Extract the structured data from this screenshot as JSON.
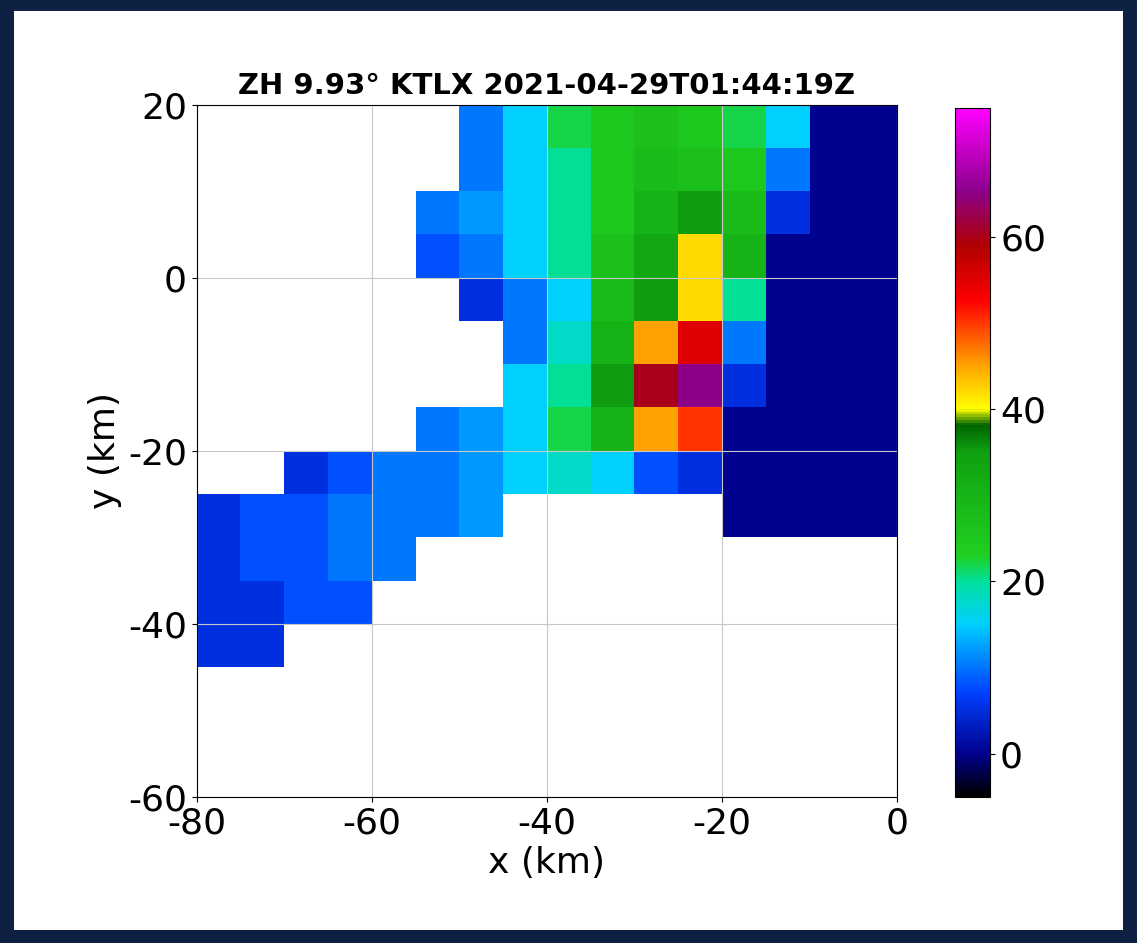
{
  "chart_data": {
    "type": "heatmap",
    "title": "ZH 9.93° KTLX 2021-04-29T01:44:19Z",
    "x_label": "x (km)",
    "y_label": "y (km)",
    "xlim": [
      -80,
      0
    ],
    "ylim": [
      -60,
      20
    ],
    "xticks": [
      -80,
      -60,
      -40,
      -20,
      0
    ],
    "yticks": [
      -60,
      -40,
      -20,
      0,
      20
    ],
    "grid": true,
    "x": [
      -77.5,
      -72.5,
      -67.5,
      -62.5,
      -57.5,
      -52.5,
      -47.5,
      -42.5,
      -37.5,
      -32.5,
      -27.5,
      -22.5,
      -17.5,
      -12.5,
      -7.5,
      -2.5
    ],
    "y": [
      17.5,
      12.5,
      7.5,
      2.5,
      -2.5,
      -7.5,
      -12.5,
      -17.5,
      -22.5,
      -27.5,
      -32.5,
      -37.5,
      -42.5,
      -47.5,
      -52.5,
      -57.5
    ],
    "cells": [
      [
        null,
        null,
        null,
        null,
        null,
        null,
        10,
        15,
        22,
        25,
        27,
        25,
        22,
        15,
        0,
        0
      ],
      [
        null,
        null,
        null,
        null,
        null,
        null,
        10,
        15,
        20,
        25,
        28,
        27,
        25,
        10,
        0,
        0
      ],
      [
        null,
        null,
        null,
        null,
        null,
        10,
        12,
        15,
        20,
        25,
        30,
        35,
        28,
        5,
        0,
        0
      ],
      [
        null,
        null,
        null,
        null,
        null,
        8,
        10,
        15,
        20,
        27,
        33,
        42,
        30,
        0,
        0,
        0
      ],
      [
        null,
        null,
        null,
        null,
        null,
        null,
        5,
        10,
        15,
        28,
        35,
        42,
        20,
        0,
        0,
        0
      ],
      [
        null,
        null,
        null,
        null,
        null,
        null,
        null,
        10,
        18,
        30,
        45,
        55,
        10,
        0,
        0,
        0
      ],
      [
        null,
        null,
        null,
        null,
        null,
        null,
        null,
        15,
        20,
        35,
        60,
        65,
        5,
        0,
        0,
        0
      ],
      [
        null,
        null,
        null,
        null,
        null,
        10,
        12,
        15,
        22,
        30,
        45,
        50,
        0,
        0,
        0,
        0
      ],
      [
        null,
        null,
        5,
        8,
        10,
        10,
        12,
        15,
        18,
        15,
        8,
        5,
        0,
        0,
        0,
        0
      ],
      [
        5,
        8,
        8,
        10,
        10,
        10,
        12,
        null,
        null,
        null,
        null,
        null,
        0,
        0,
        0,
        0
      ],
      [
        5,
        8,
        8,
        10,
        10,
        null,
        null,
        null,
        null,
        null,
        null,
        null,
        null,
        null,
        null,
        null
      ],
      [
        5,
        5,
        8,
        8,
        null,
        null,
        null,
        null,
        null,
        null,
        null,
        null,
        null,
        null,
        null,
        null
      ],
      [
        5,
        5,
        null,
        null,
        null,
        null,
        null,
        null,
        null,
        null,
        null,
        null,
        null,
        null,
        null,
        null
      ],
      [
        null,
        null,
        null,
        null,
        null,
        null,
        null,
        null,
        null,
        null,
        null,
        null,
        null,
        null,
        null,
        null
      ],
      [
        null,
        null,
        null,
        null,
        null,
        null,
        null,
        null,
        null,
        null,
        null,
        null,
        null,
        null,
        null,
        null
      ],
      [
        null,
        null,
        null,
        null,
        null,
        null,
        null,
        null,
        null,
        null,
        null,
        null,
        null,
        null,
        null,
        null
      ]
    ],
    "colorbar": {
      "range": [
        -5,
        75
      ],
      "ticks": [
        0,
        20,
        40,
        60
      ]
    }
  }
}
